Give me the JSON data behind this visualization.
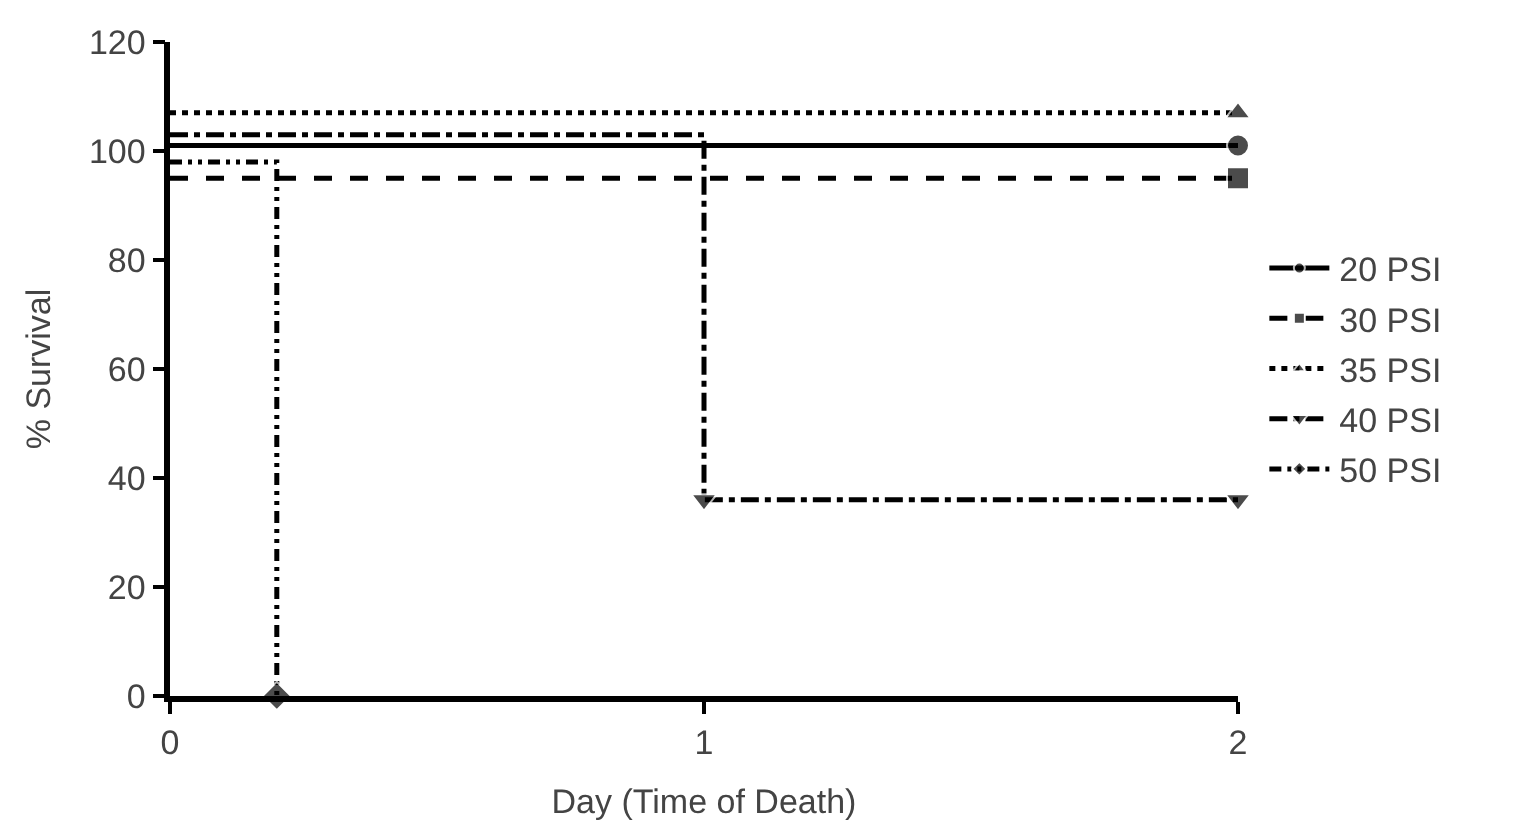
{
  "chart_data": {
    "type": "step",
    "xlabel": "Day (Time of Death)",
    "ylabel": "% Survival",
    "xlim": [
      0,
      2
    ],
    "xticks": [
      0,
      1,
      2
    ],
    "ylim": [
      0,
      120
    ],
    "yticks": [
      0,
      20,
      40,
      60,
      80,
      100,
      120
    ],
    "legend": "right",
    "series": [
      {
        "name": "20 PSI",
        "color": "#000000",
        "x": [
          0,
          2
        ],
        "values": [
          101,
          101
        ],
        "line_style": "solid",
        "marker": "circle"
      },
      {
        "name": "30 PSI",
        "color": "#000000",
        "x": [
          0,
          2
        ],
        "values": [
          95,
          95
        ],
        "line_style": "dashed",
        "marker": "square"
      },
      {
        "name": "35 PSI",
        "color": "#000000",
        "x": [
          0,
          2
        ],
        "values": [
          107,
          107
        ],
        "line_style": "dotted",
        "marker": "triangle"
      },
      {
        "name": "40 PSI",
        "color": "#000000",
        "x": [
          0,
          1,
          2
        ],
        "values": [
          103,
          36,
          36
        ],
        "line_style": "dashdot",
        "marker": "triangle-down"
      },
      {
        "name": "50 PSI",
        "color": "#000000",
        "x": [
          0,
          0.2
        ],
        "values": [
          98,
          0
        ],
        "line_style": "dashdotdot",
        "marker": "diamond"
      }
    ]
  }
}
